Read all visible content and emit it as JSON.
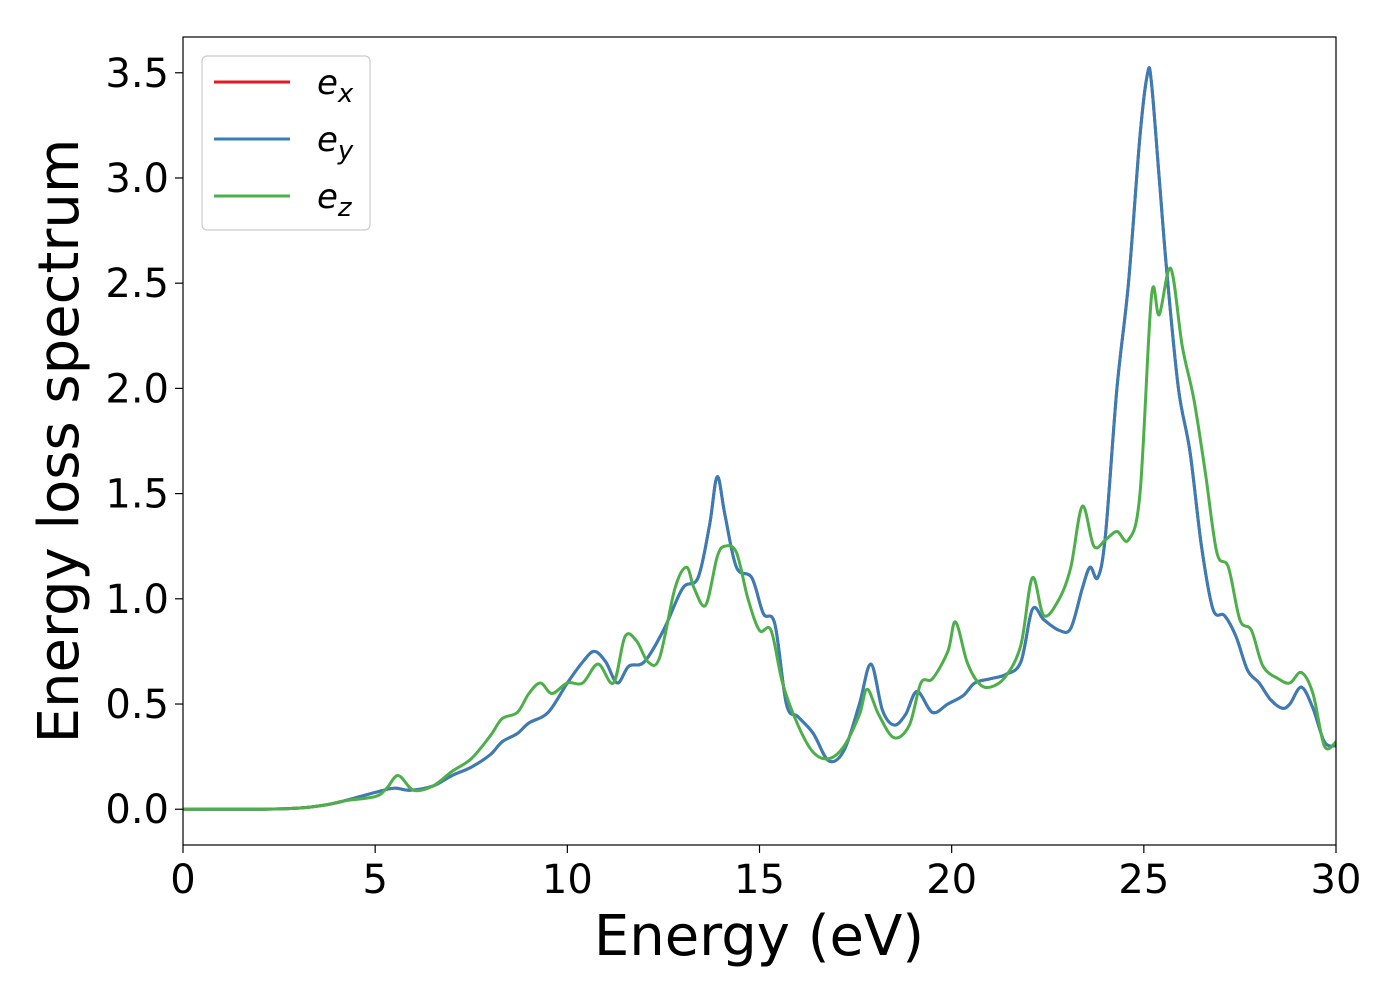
{
  "chart_data": {
    "type": "line",
    "xlabel": "Energy (eV)",
    "ylabel": "Energy loss spectrum",
    "xlim": [
      0,
      30
    ],
    "ylim": [
      -0.17,
      3.67
    ],
    "xticks": [
      "0",
      "5",
      "10",
      "15",
      "20",
      "25",
      "30"
    ],
    "yticks": [
      "0.0",
      "0.5",
      "1.0",
      "1.5",
      "2.0",
      "2.5",
      "3.0",
      "3.5"
    ],
    "grid": false,
    "legend_position": "top-left",
    "series": [
      {
        "name": "e",
        "subscript": "x",
        "color": "#e41a1c",
        "x": [
          0,
          1,
          2,
          3,
          3.7,
          4.2,
          5,
          5.5,
          5.9,
          6.5,
          7,
          7.5,
          8,
          8.3,
          8.7,
          9,
          9.5,
          10,
          10.4,
          10.7,
          11,
          11.3,
          11.6,
          12,
          12.5,
          13,
          13.4,
          13.7,
          13.9,
          14.1,
          14.4,
          14.8,
          15.1,
          15.4,
          15.7,
          16,
          16.4,
          16.8,
          17.2,
          17.6,
          17.9,
          18.2,
          18.5,
          18.8,
          19.1,
          19.5,
          19.9,
          20.3,
          20.6,
          21,
          21.4,
          21.8,
          22.1,
          22.4,
          22.8,
          23.1,
          23.4,
          23.6,
          23.8,
          24,
          24.3,
          24.6,
          24.9,
          25.1,
          25.2,
          25.4,
          25.6,
          25.9,
          26.2,
          26.5,
          26.8,
          27.1,
          27.4,
          27.7,
          28,
          28.3,
          28.6,
          28.8,
          29.1,
          29.4,
          29.7,
          30
        ],
        "values": [
          0,
          0,
          0,
          0.005,
          0.02,
          0.04,
          0.08,
          0.1,
          0.09,
          0.11,
          0.16,
          0.2,
          0.26,
          0.32,
          0.36,
          0.41,
          0.46,
          0.6,
          0.7,
          0.75,
          0.7,
          0.6,
          0.68,
          0.7,
          0.85,
          1.05,
          1.1,
          1.35,
          1.58,
          1.4,
          1.15,
          1.1,
          0.93,
          0.88,
          0.5,
          0.44,
          0.36,
          0.23,
          0.28,
          0.5,
          0.69,
          0.47,
          0.4,
          0.45,
          0.56,
          0.46,
          0.5,
          0.54,
          0.6,
          0.62,
          0.64,
          0.7,
          0.95,
          0.9,
          0.85,
          0.86,
          1.05,
          1.15,
          1.1,
          1.3,
          2.0,
          2.5,
          3.2,
          3.5,
          3.45,
          3.0,
          2.55,
          2.0,
          1.7,
          1.25,
          0.95,
          0.92,
          0.82,
          0.66,
          0.6,
          0.52,
          0.48,
          0.5,
          0.58,
          0.48,
          0.32,
          0.3
        ]
      },
      {
        "name": "e",
        "subscript": "y",
        "color": "#377eb8",
        "x": [
          0,
          1,
          2,
          3,
          3.7,
          4.2,
          5,
          5.5,
          5.9,
          6.5,
          7,
          7.5,
          8,
          8.3,
          8.7,
          9,
          9.5,
          10,
          10.4,
          10.7,
          11,
          11.3,
          11.6,
          12,
          12.5,
          13,
          13.4,
          13.7,
          13.9,
          14.1,
          14.4,
          14.8,
          15.1,
          15.4,
          15.7,
          16,
          16.4,
          16.8,
          17.2,
          17.6,
          17.9,
          18.2,
          18.5,
          18.8,
          19.1,
          19.5,
          19.9,
          20.3,
          20.6,
          21,
          21.4,
          21.8,
          22.1,
          22.4,
          22.8,
          23.1,
          23.4,
          23.6,
          23.8,
          24,
          24.3,
          24.6,
          24.9,
          25.1,
          25.2,
          25.4,
          25.6,
          25.9,
          26.2,
          26.5,
          26.8,
          27.1,
          27.4,
          27.7,
          28,
          28.3,
          28.6,
          28.8,
          29.1,
          29.4,
          29.7,
          30
        ],
        "values": [
          0,
          0,
          0,
          0.005,
          0.02,
          0.04,
          0.08,
          0.1,
          0.09,
          0.11,
          0.16,
          0.2,
          0.26,
          0.32,
          0.36,
          0.41,
          0.46,
          0.6,
          0.7,
          0.75,
          0.7,
          0.6,
          0.68,
          0.7,
          0.85,
          1.05,
          1.1,
          1.35,
          1.58,
          1.4,
          1.15,
          1.1,
          0.93,
          0.88,
          0.5,
          0.44,
          0.36,
          0.23,
          0.28,
          0.5,
          0.69,
          0.47,
          0.4,
          0.45,
          0.56,
          0.46,
          0.5,
          0.54,
          0.6,
          0.62,
          0.64,
          0.7,
          0.95,
          0.9,
          0.85,
          0.86,
          1.05,
          1.15,
          1.1,
          1.3,
          2.0,
          2.5,
          3.2,
          3.5,
          3.45,
          3.0,
          2.55,
          2.0,
          1.7,
          1.25,
          0.95,
          0.92,
          0.82,
          0.66,
          0.6,
          0.52,
          0.48,
          0.5,
          0.58,
          0.48,
          0.32,
          0.3
        ]
      },
      {
        "name": "e",
        "subscript": "z",
        "color": "#4daf4a",
        "x": [
          0,
          1,
          2,
          3,
          3.7,
          4.2,
          5,
          5.3,
          5.6,
          6,
          6.5,
          7,
          7.5,
          8,
          8.3,
          8.7,
          9,
          9.3,
          9.6,
          10,
          10.4,
          10.8,
          11.2,
          11.5,
          11.8,
          12.1,
          12.4,
          12.8,
          13.1,
          13.3,
          13.6,
          13.9,
          14.1,
          14.4,
          14.7,
          15,
          15.3,
          15.6,
          16,
          16.4,
          16.8,
          17.2,
          17.6,
          17.8,
          18.1,
          18.5,
          18.9,
          19.2,
          19.5,
          19.9,
          20.1,
          20.4,
          20.7,
          21,
          21.4,
          21.8,
          22.1,
          22.4,
          22.8,
          23.1,
          23.4,
          23.7,
          24,
          24.3,
          24.6,
          24.9,
          25.2,
          25.4,
          25.7,
          26,
          26.3,
          26.6,
          26.9,
          27.2,
          27.5,
          27.8,
          28.1,
          28.5,
          28.8,
          29.1,
          29.4,
          29.7,
          30
        ],
        "values": [
          0,
          0,
          0,
          0.005,
          0.02,
          0.04,
          0.06,
          0.1,
          0.16,
          0.09,
          0.11,
          0.18,
          0.24,
          0.35,
          0.43,
          0.46,
          0.55,
          0.6,
          0.55,
          0.6,
          0.6,
          0.69,
          0.6,
          0.82,
          0.8,
          0.7,
          0.72,
          1.05,
          1.15,
          1.05,
          0.97,
          1.2,
          1.25,
          1.22,
          1.0,
          0.85,
          0.85,
          0.6,
          0.4,
          0.27,
          0.24,
          0.3,
          0.45,
          0.57,
          0.45,
          0.34,
          0.4,
          0.6,
          0.62,
          0.75,
          0.89,
          0.7,
          0.6,
          0.58,
          0.63,
          0.78,
          1.1,
          0.92,
          1.0,
          1.15,
          1.44,
          1.25,
          1.28,
          1.32,
          1.28,
          1.5,
          2.44,
          2.35,
          2.57,
          2.2,
          1.95,
          1.6,
          1.22,
          1.15,
          0.9,
          0.85,
          0.68,
          0.62,
          0.6,
          0.65,
          0.55,
          0.3,
          0.32
        ]
      }
    ]
  }
}
